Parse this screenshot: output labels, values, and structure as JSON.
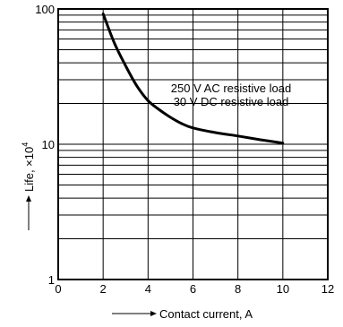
{
  "chart_data": {
    "type": "line",
    "xlabel": "Contact current, A",
    "ylabel_text": "Life, ×10",
    "ylabel_exp": "4",
    "xlim": [
      0,
      12
    ],
    "ylim": [
      1,
      100
    ],
    "y_scale": "log",
    "grid": true,
    "x_ticks": [
      0,
      2,
      4,
      6,
      8,
      10,
      12
    ],
    "x_tick_labels": [
      "0",
      "2",
      "4",
      "6",
      "8",
      "10",
      "12"
    ],
    "y_ticks": [
      1,
      10,
      100
    ],
    "y_tick_labels": [
      "1",
      "10",
      "100"
    ],
    "annotations": [
      "250 V AC resistive load",
      "30 V DC resistive load"
    ],
    "series": [
      {
        "x": [
          2.0,
          2.5,
          3.0,
          3.5,
          4.0,
          4.5,
          5.0,
          5.5,
          6.0,
          7.0,
          8.0,
          9.0,
          10.0
        ],
        "y": [
          92,
          56,
          38,
          27,
          21,
          18,
          15.8,
          14.2,
          13.2,
          12.2,
          11.5,
          10.8,
          10.2
        ]
      }
    ]
  }
}
